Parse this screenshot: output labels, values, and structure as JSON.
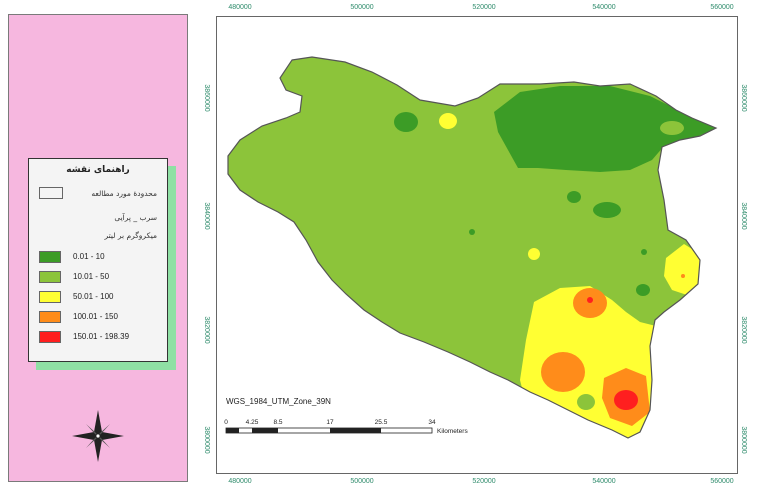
{
  "legend": {
    "title": "راهنمای نقشه",
    "boundary_label": "محدودهٔ مورد مطالعه",
    "layer_title": "سرب _ پرآیی",
    "unit_label": "میکروگرم بر لیتر",
    "classes": [
      {
        "label": "0.01 - 10",
        "color": "#3c9c26"
      },
      {
        "label": "10.01 - 50",
        "color": "#8cc43a"
      },
      {
        "label": "50.01 - 100",
        "color": "#ffff33"
      },
      {
        "label": "100.01 - 150",
        "color": "#ff8c1a"
      },
      {
        "label": "150.01 - 198.39",
        "color": "#ff1f1f"
      }
    ]
  },
  "map": {
    "projection": "WGS_1984_UTM_Zone_39N",
    "x_ticks_top": [
      "480000",
      "500000",
      "520000",
      "540000",
      "560000"
    ],
    "x_ticks_bottom": [
      "480000",
      "500000",
      "520000",
      "540000",
      "560000"
    ],
    "y_ticks_right": [
      "3860000",
      "3840000",
      "3820000",
      "3800000"
    ],
    "y_ticks_left": [
      "3860000",
      "3840000",
      "3820000",
      "3800000"
    ],
    "scale_labels": [
      "0",
      "4.25",
      "8.5",
      "17",
      "25.5",
      "34"
    ],
    "scale_unit": "Kilometers"
  },
  "compass": {
    "icon": "north-arrow-compass-icon"
  }
}
